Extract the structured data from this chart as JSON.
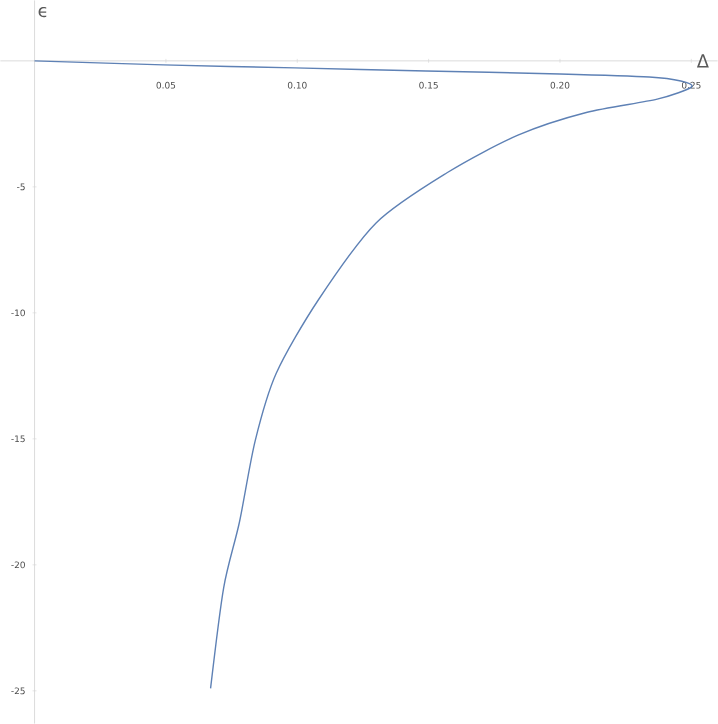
{
  "chart_data": {
    "type": "line",
    "xlabel": "Δ",
    "ylabel": "ϵ",
    "xlim": [
      -0.013,
      0.26
    ],
    "ylim": [
      -26.3,
      2.4
    ],
    "xticks": [
      {
        "value": 0.05,
        "label": "0.05"
      },
      {
        "value": 0.1,
        "label": "0.10"
      },
      {
        "value": 0.15,
        "label": "0.15"
      },
      {
        "value": 0.2,
        "label": "0.20"
      },
      {
        "value": 0.25,
        "label": "0.25"
      }
    ],
    "yticks": [
      -5,
      -10,
      -15,
      -20,
      -25
    ],
    "series": [
      {
        "color": "#5e81b5",
        "x": [
          0,
          0.049,
          0.099,
          0.149,
          0.2,
          0.234,
          0.246,
          0.25,
          0.237,
          0.21,
          0.184,
          0.157,
          0.13,
          0.108,
          0.092,
          0.084,
          0.078,
          0.072,
          0.067
        ],
        "values": [
          0,
          -0.16,
          -0.28,
          -0.4,
          -0.52,
          -0.64,
          -0.8,
          -1.04,
          -1.52,
          -2.05,
          -2.95,
          -4.44,
          -6.43,
          -9.49,
          -12.4,
          -15.07,
          -18.3,
          -20.9,
          -24.9
        ]
      }
    ],
    "grid": false,
    "marker": "none",
    "line_style": "solid"
  }
}
